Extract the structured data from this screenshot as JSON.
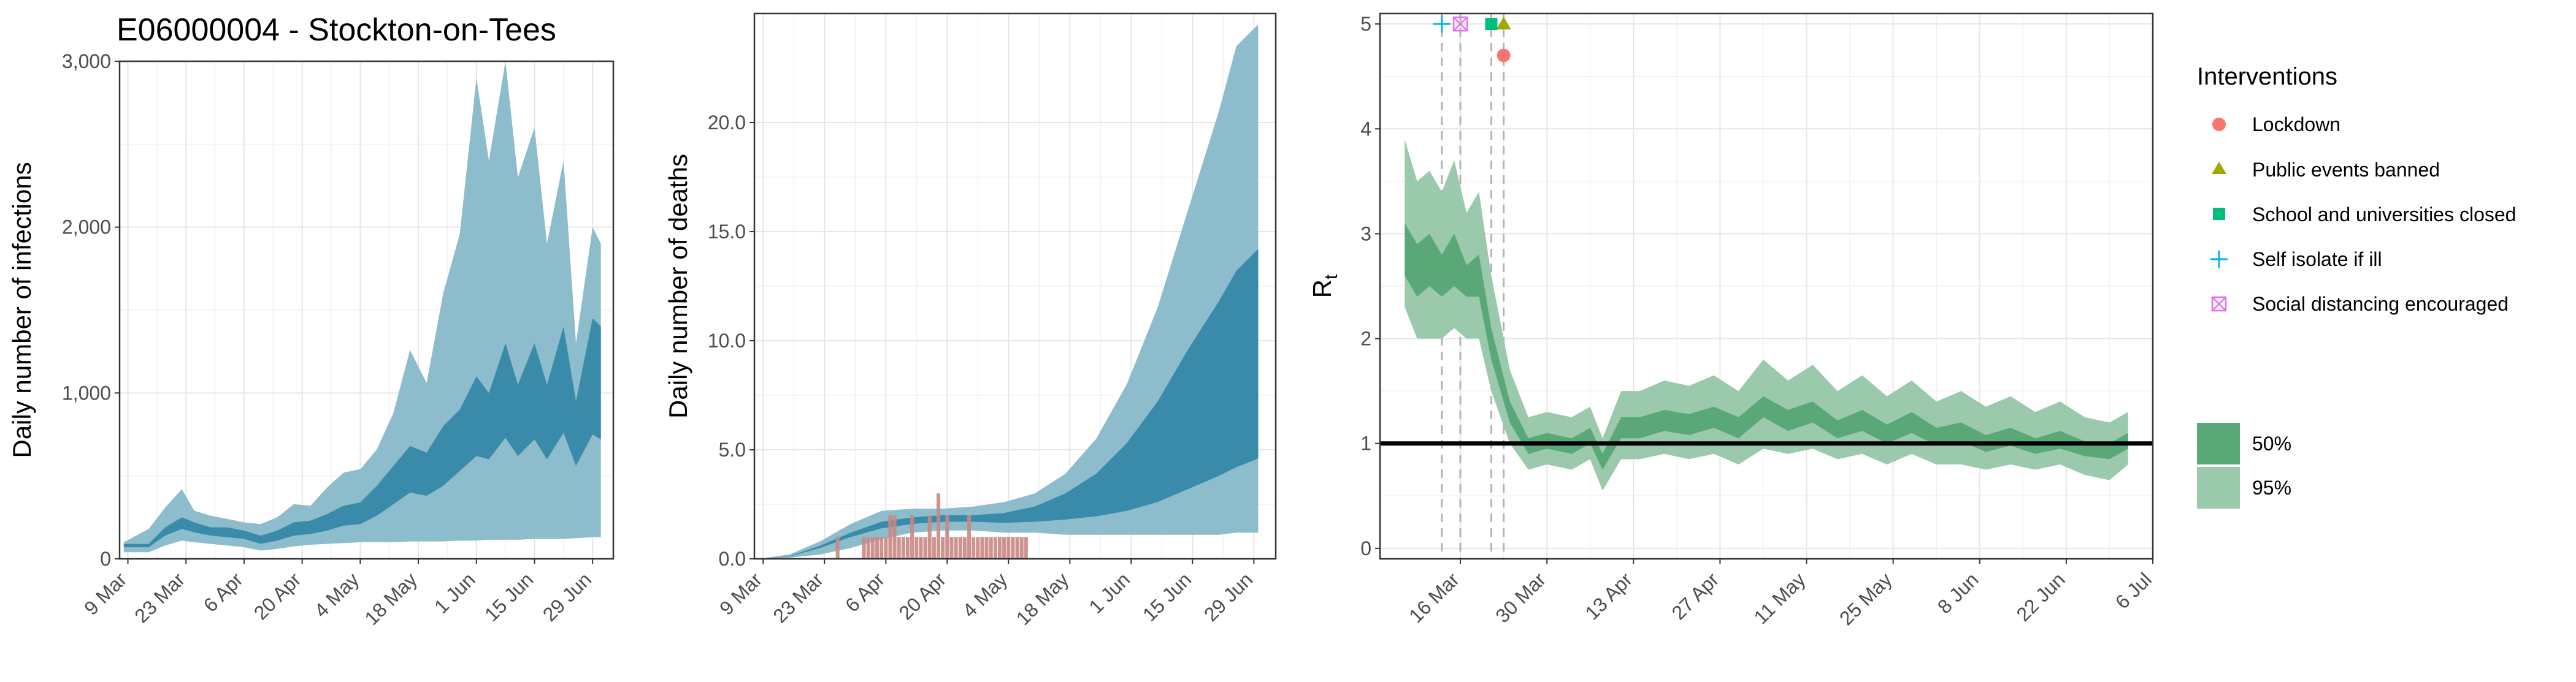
{
  "title": "E06000004 - Stockton-on-Tees",
  "colors": {
    "infections_95": "#8dbdcc",
    "infections_50": "#3a8aa9",
    "deaths_95": "#8dbdcc",
    "deaths_50": "#3a8aa9",
    "observed_deaths": "#c98782",
    "rt_95": "#9ac9ac",
    "rt_50": "#5aa878",
    "lockdown": "#f8766d",
    "public_events": "#a3a500",
    "school": "#00bf7d",
    "self_isolate": "#00b0f6",
    "social_distancing": "#e76bf3"
  },
  "chart_data": [
    {
      "type": "area",
      "ylabel": "Daily number of infections",
      "ylim": [
        0,
        3000
      ],
      "yticks": [
        0,
        1000,
        2000,
        3000
      ],
      "ytick_labels": [
        "0",
        "1,000",
        "2,000",
        "3,000"
      ],
      "xlim": [
        "2020-03-07",
        "2020-07-04"
      ],
      "xticks": [
        "2020-03-09",
        "2020-03-23",
        "2020-04-06",
        "2020-04-20",
        "2020-05-04",
        "2020-05-18",
        "2020-06-01",
        "2020-06-15",
        "2020-06-29"
      ],
      "xtick_labels": [
        "9 Mar",
        "23 Mar",
        "6 Apr",
        "20 Apr",
        "4 May",
        "18 May",
        "1 Jun",
        "15 Jun",
        "29 Jun"
      ],
      "grid": true,
      "x": [
        "2020-03-08",
        "2020-03-14",
        "2020-03-18",
        "2020-03-22",
        "2020-03-25",
        "2020-03-29",
        "2020-04-02",
        "2020-04-06",
        "2020-04-10",
        "2020-04-14",
        "2020-04-18",
        "2020-04-22",
        "2020-04-26",
        "2020-04-30",
        "2020-05-04",
        "2020-05-08",
        "2020-05-12",
        "2020-05-16",
        "2020-05-20",
        "2020-05-24",
        "2020-05-28",
        "2020-06-01",
        "2020-06-04",
        "2020-06-08",
        "2020-06-11",
        "2020-06-15",
        "2020-06-18",
        "2020-06-22",
        "2020-06-25",
        "2020-06-29",
        "2020-07-01"
      ],
      "series": [
        {
          "band": "95%",
          "lower": [
            40,
            40,
            80,
            110,
            100,
            90,
            80,
            70,
            50,
            60,
            75,
            85,
            90,
            95,
            100,
            100,
            100,
            105,
            105,
            105,
            110,
            110,
            115,
            115,
            115,
            120,
            120,
            120,
            125,
            130,
            130
          ],
          "upper": [
            100,
            180,
            310,
            420,
            290,
            260,
            240,
            220,
            210,
            250,
            330,
            320,
            430,
            520,
            540,
            660,
            880,
            1260,
            1060,
            1600,
            1960,
            2900,
            2400,
            3000,
            2300,
            2600,
            1900,
            2400,
            1300,
            2000,
            1900
          ]
        },
        {
          "band": "50%",
          "lower": [
            70,
            70,
            140,
            180,
            160,
            140,
            130,
            120,
            90,
            110,
            140,
            150,
            170,
            200,
            210,
            260,
            330,
            400,
            380,
            440,
            530,
            620,
            600,
            730,
            620,
            720,
            600,
            760,
            560,
            750,
            720
          ],
          "upper": [
            90,
            90,
            190,
            250,
            220,
            190,
            190,
            170,
            140,
            170,
            220,
            230,
            270,
            320,
            340,
            440,
            560,
            680,
            640,
            800,
            900,
            1100,
            1000,
            1300,
            1050,
            1300,
            1050,
            1400,
            950,
            1450,
            1400
          ]
        }
      ]
    },
    {
      "type": "area",
      "ylabel": "Daily number of deaths",
      "ylim": [
        0,
        25
      ],
      "yticks": [
        0,
        5,
        10,
        15,
        20
      ],
      "ytick_labels": [
        "0.0",
        "5.0",
        "10.0",
        "15.0",
        "20.0"
      ],
      "xlim": [
        "2020-03-07",
        "2020-07-04"
      ],
      "xticks": [
        "2020-03-09",
        "2020-03-23",
        "2020-04-06",
        "2020-04-20",
        "2020-05-04",
        "2020-05-18",
        "2020-06-01",
        "2020-06-15",
        "2020-06-29"
      ],
      "xtick_labels": [
        "9 Mar",
        "23 Mar",
        "6 Apr",
        "20 Apr",
        "4 May",
        "18 May",
        "1 Jun",
        "15 Jun",
        "29 Jun"
      ],
      "grid": true,
      "x": [
        "2020-03-08",
        "2020-03-15",
        "2020-03-22",
        "2020-03-29",
        "2020-04-05",
        "2020-04-12",
        "2020-04-19",
        "2020-04-26",
        "2020-05-03",
        "2020-05-10",
        "2020-05-17",
        "2020-05-24",
        "2020-05-31",
        "2020-06-07",
        "2020-06-14",
        "2020-06-21",
        "2020-06-25",
        "2020-06-30"
      ],
      "series": [
        {
          "band": "95%",
          "lower": [
            0,
            0.05,
            0.2,
            0.5,
            0.9,
            1.2,
            1.3,
            1.3,
            1.2,
            1.2,
            1.1,
            1.1,
            1.1,
            1.1,
            1.1,
            1.1,
            1.2,
            1.2
          ],
          "upper": [
            0,
            0.2,
            0.8,
            1.6,
            2.2,
            2.3,
            2.3,
            2.4,
            2.6,
            3.0,
            3.9,
            5.5,
            8.0,
            11.5,
            16.0,
            20.5,
            23.5,
            24.5
          ]
        },
        {
          "band": "50%",
          "lower": [
            0,
            0.1,
            0.5,
            1.0,
            1.4,
            1.6,
            1.7,
            1.7,
            1.65,
            1.7,
            1.8,
            1.95,
            2.2,
            2.6,
            3.2,
            3.8,
            4.2,
            4.6
          ],
          "upper": [
            0,
            0.12,
            0.6,
            1.2,
            1.7,
            1.9,
            2.0,
            2.0,
            2.1,
            2.4,
            3.0,
            3.9,
            5.3,
            7.2,
            9.6,
            11.8,
            13.2,
            14.2
          ]
        }
      ],
      "observed_deaths": {
        "x": [
          "2020-03-26",
          "2020-04-01",
          "2020-04-02",
          "2020-04-03",
          "2020-04-04",
          "2020-04-05",
          "2020-04-06",
          "2020-04-07",
          "2020-04-08",
          "2020-04-09",
          "2020-04-10",
          "2020-04-11",
          "2020-04-12",
          "2020-04-13",
          "2020-04-14",
          "2020-04-15",
          "2020-04-16",
          "2020-04-17",
          "2020-04-18",
          "2020-04-19",
          "2020-04-20",
          "2020-04-21",
          "2020-04-22",
          "2020-04-23",
          "2020-04-24",
          "2020-04-25",
          "2020-04-26",
          "2020-04-27",
          "2020-04-28",
          "2020-04-29",
          "2020-04-30",
          "2020-05-01",
          "2020-05-02",
          "2020-05-03",
          "2020-05-04",
          "2020-05-05",
          "2020-05-06",
          "2020-05-07",
          "2020-05-08"
        ],
        "values": [
          1,
          1,
          1,
          1,
          1,
          1,
          1,
          2,
          2,
          1,
          1,
          1,
          2,
          1,
          1,
          1,
          2,
          1,
          3,
          1,
          2,
          1,
          1,
          1,
          1,
          2,
          1,
          1,
          1,
          1,
          1,
          1,
          1,
          1,
          1,
          1,
          1,
          1,
          1
        ]
      }
    },
    {
      "type": "area",
      "ylabel": "R",
      "ylabel_subscript": "t",
      "ylim": [
        -0.1,
        5.1
      ],
      "yticks": [
        0,
        1,
        2,
        3,
        4,
        5
      ],
      "ytick_labels": [
        "0",
        "1",
        "2",
        "3",
        "4",
        "5"
      ],
      "xlim": [
        "2020-03-03",
        "2020-07-06"
      ],
      "xticks": [
        "2020-03-16",
        "2020-03-30",
        "2020-04-13",
        "2020-04-27",
        "2020-05-11",
        "2020-05-25",
        "2020-06-08",
        "2020-06-22",
        "2020-07-06"
      ],
      "xtick_labels": [
        "16 Mar",
        "30 Mar",
        "13 Apr",
        "27 Apr",
        "11 May",
        "25 May",
        "8 Jun",
        "22 Jun",
        "6 Jul"
      ],
      "grid": true,
      "reference_line": 1,
      "x": [
        "2020-03-07",
        "2020-03-09",
        "2020-03-11",
        "2020-03-13",
        "2020-03-15",
        "2020-03-17",
        "2020-03-19",
        "2020-03-21",
        "2020-03-24",
        "2020-03-27",
        "2020-03-30",
        "2020-04-03",
        "2020-04-06",
        "2020-04-08",
        "2020-04-11",
        "2020-04-14",
        "2020-04-18",
        "2020-04-22",
        "2020-04-26",
        "2020-04-30",
        "2020-05-04",
        "2020-05-08",
        "2020-05-12",
        "2020-05-16",
        "2020-05-20",
        "2020-05-24",
        "2020-05-28",
        "2020-06-01",
        "2020-06-05",
        "2020-06-09",
        "2020-06-13",
        "2020-06-17",
        "2020-06-21",
        "2020-06-25",
        "2020-06-29",
        "2020-07-02"
      ],
      "series": [
        {
          "band": "95%",
          "lower": [
            2.3,
            2.0,
            2.0,
            2.0,
            2.1,
            2.0,
            2.0,
            1.5,
            1.0,
            0.75,
            0.8,
            0.75,
            0.85,
            0.55,
            0.85,
            0.85,
            0.9,
            0.85,
            0.9,
            0.8,
            0.95,
            0.9,
            0.95,
            0.85,
            0.9,
            0.8,
            0.9,
            0.8,
            0.8,
            0.75,
            0.8,
            0.75,
            0.8,
            0.7,
            0.65,
            0.8
          ],
          "upper": [
            3.9,
            3.5,
            3.6,
            3.4,
            3.7,
            3.2,
            3.4,
            2.6,
            1.7,
            1.25,
            1.3,
            1.25,
            1.35,
            1.05,
            1.5,
            1.5,
            1.6,
            1.55,
            1.65,
            1.5,
            1.8,
            1.6,
            1.75,
            1.5,
            1.65,
            1.45,
            1.6,
            1.4,
            1.5,
            1.35,
            1.45,
            1.3,
            1.4,
            1.25,
            1.2,
            1.3
          ]
        },
        {
          "band": "50%",
          "lower": [
            2.6,
            2.4,
            2.5,
            2.4,
            2.5,
            2.4,
            2.4,
            1.8,
            1.2,
            0.9,
            0.95,
            0.9,
            1.0,
            0.75,
            1.05,
            1.05,
            1.12,
            1.08,
            1.15,
            1.05,
            1.25,
            1.12,
            1.2,
            1.05,
            1.12,
            1.0,
            1.1,
            0.98,
            1.02,
            0.92,
            0.98,
            0.9,
            0.95,
            0.88,
            0.85,
            0.95
          ],
          "upper": [
            3.1,
            2.9,
            3.0,
            2.8,
            3.0,
            2.7,
            2.8,
            2.1,
            1.4,
            1.05,
            1.1,
            1.05,
            1.15,
            0.9,
            1.25,
            1.25,
            1.32,
            1.28,
            1.35,
            1.25,
            1.45,
            1.32,
            1.4,
            1.22,
            1.32,
            1.18,
            1.3,
            1.15,
            1.2,
            1.08,
            1.15,
            1.05,
            1.12,
            1.02,
            1.0,
            1.1
          ]
        }
      ],
      "interventions": [
        {
          "name": "Lockdown",
          "date": "2020-03-23",
          "marker_y": 4.7
        },
        {
          "name": "Public events banned",
          "date": "2020-03-23",
          "marker_y": 5.0
        },
        {
          "name": "School and universities closed",
          "date": "2020-03-21",
          "marker_y": 5.0
        },
        {
          "name": "Self isolate if ill",
          "date": "2020-03-13",
          "marker_y": 5.0
        },
        {
          "name": "Social distancing encouraged",
          "date": "2020-03-16",
          "marker_y": 5.0
        }
      ]
    }
  ],
  "legend": {
    "title": "Interventions",
    "items": [
      "Lockdown",
      "Public events banned",
      "School and universities closed",
      "Self isolate if ill",
      "Social distancing encouraged"
    ],
    "bands": [
      "50%",
      "95%"
    ],
    "placement": "right"
  }
}
